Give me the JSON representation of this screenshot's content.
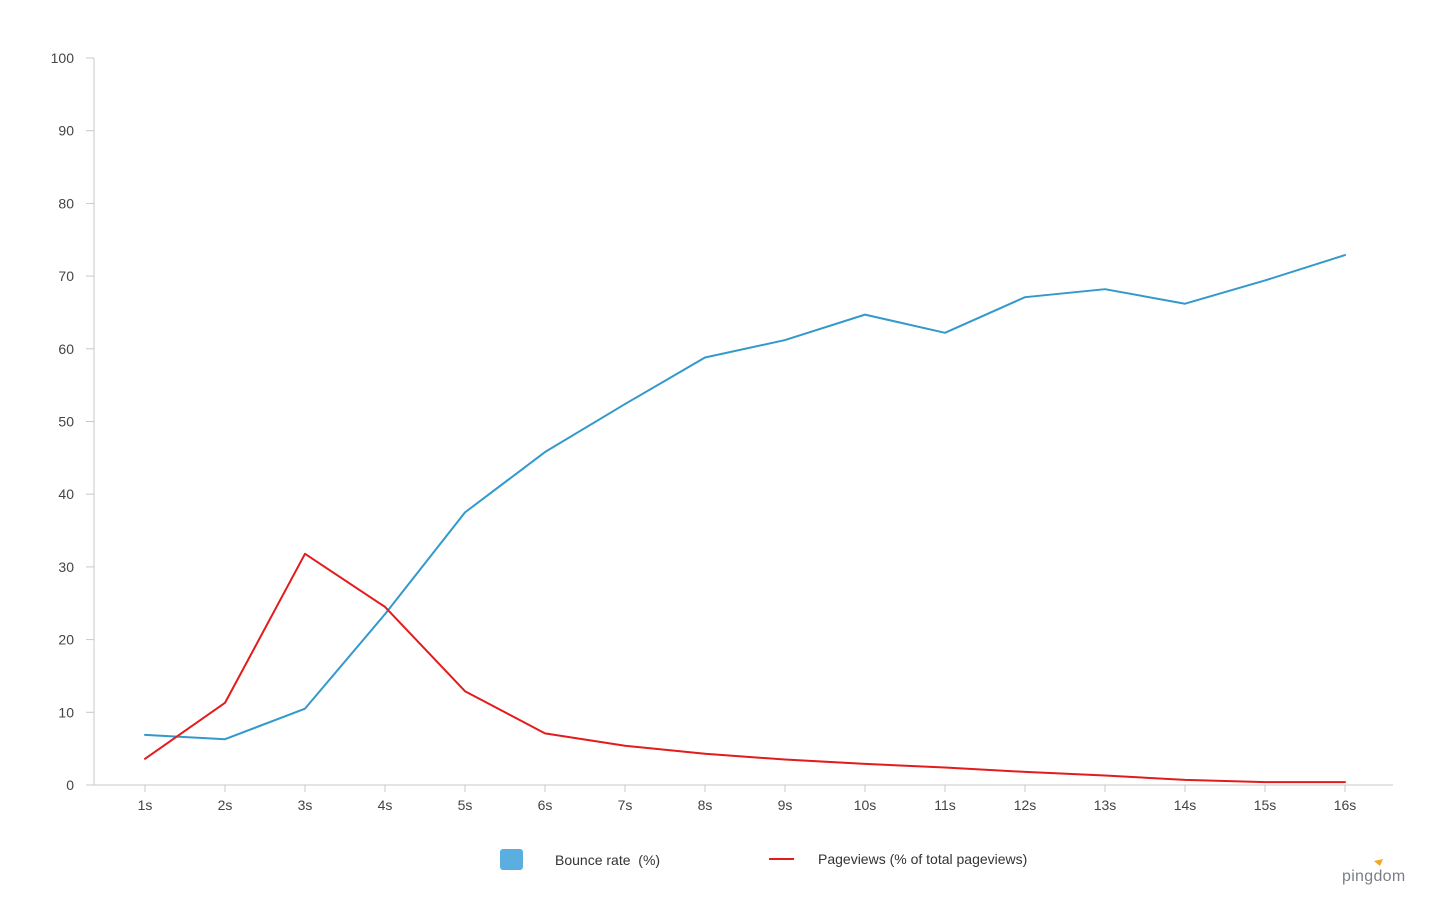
{
  "chart_data": {
    "type": "line",
    "title": "",
    "xlabel": "",
    "ylabel": "",
    "categories": [
      "1s",
      "2s",
      "3s",
      "4s",
      "5s",
      "6s",
      "7s",
      "8s",
      "9s",
      "10s",
      "11s",
      "12s",
      "13s",
      "14s",
      "15s",
      "16s"
    ],
    "ylim": [
      0,
      100
    ],
    "yticks": [
      0,
      10,
      20,
      30,
      40,
      50,
      60,
      70,
      80,
      90,
      100
    ],
    "grid": false,
    "legend_position": "bottom-center",
    "series": [
      {
        "name": "Bounce rate  (%)",
        "color": "#3399cc",
        "legend_swatch_color": "#5aafe0",
        "legend_marker": "square",
        "values": [
          6.9,
          6.3,
          10.5,
          23.5,
          37.5,
          45.8,
          52.4,
          58.8,
          61.2,
          64.7,
          62.2,
          67.1,
          68.2,
          66.2,
          69.4,
          72.9
        ]
      },
      {
        "name": "Pageviews (% of total pageviews)",
        "color": "#e31b1b",
        "legend_marker": "line",
        "values": [
          3.6,
          11.3,
          31.8,
          24.5,
          12.9,
          7.1,
          5.4,
          4.3,
          3.5,
          2.9,
          2.4,
          1.8,
          1.3,
          0.7,
          0.4,
          0.4
        ]
      }
    ]
  },
  "branding": {
    "logo_text": "pingdom",
    "logo_icon": "pingdom-bird-icon",
    "logo_accent_color": "#f5a623"
  }
}
